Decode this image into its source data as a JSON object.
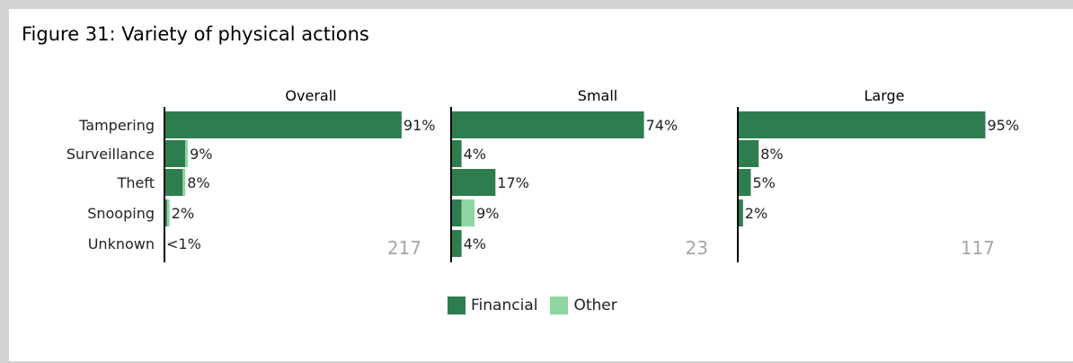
{
  "figure": {
    "title": "Figure 31: Variety of physical actions"
  },
  "colors": {
    "financial": "#2e7d4f",
    "other": "#8fd6a0",
    "axis": "#000000",
    "count_text": "#a6a6a6",
    "background_border": "#d4d4d4"
  },
  "legend": {
    "financial": "Financial",
    "other": "Other"
  },
  "chart_data": {
    "type": "bar",
    "orientation": "horizontal",
    "stacked": true,
    "categories": [
      "Tampering",
      "Surveillance",
      "Theft",
      "Snooping",
      "Unknown"
    ],
    "xlim": [
      0,
      100
    ],
    "grid": false,
    "legend_position": "bottom",
    "panels": [
      {
        "title": "Overall",
        "count": "217",
        "series": [
          {
            "name": "Financial",
            "values": [
              91,
              8,
              7,
              1,
              0
            ]
          },
          {
            "name": "Other",
            "values": [
              0,
              1,
              1,
              1,
              0
            ]
          }
        ],
        "labels": [
          "91%",
          "9%",
          "8%",
          "2%",
          "<1%"
        ]
      },
      {
        "title": "Small",
        "count": "23",
        "series": [
          {
            "name": "Financial",
            "values": [
              74,
              4,
              17,
              4,
              4
            ]
          },
          {
            "name": "Other",
            "values": [
              0,
              0,
              0,
              5,
              0
            ]
          }
        ],
        "labels": [
          "74%",
          "4%",
          "17%",
          "9%",
          "4%"
        ]
      },
      {
        "title": "Large",
        "count": "117",
        "series": [
          {
            "name": "Financial",
            "values": [
              95,
              8,
              5,
              2,
              0
            ]
          },
          {
            "name": "Other",
            "values": [
              0,
              0,
              0,
              0,
              0
            ]
          }
        ],
        "labels": [
          "95%",
          "8%",
          "5%",
          "2%",
          ""
        ]
      }
    ]
  }
}
